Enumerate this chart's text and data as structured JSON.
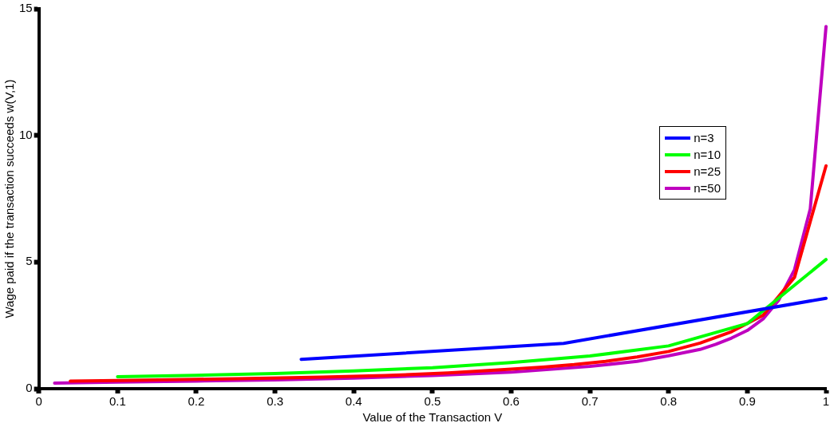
{
  "chart_data": {
    "type": "line",
    "xlabel": "Value of the Transaction V",
    "ylabel": "Wage paid if the transaction succeeds w(V,1)",
    "xlim": [
      0,
      1
    ],
    "xticks": [
      0,
      0.1,
      0.2,
      0.3,
      0.4,
      0.5,
      0.6,
      0.7,
      0.8,
      0.9,
      1
    ],
    "ylim": [
      0,
      15
    ],
    "yticks": [
      0,
      5,
      10,
      15
    ],
    "grid": false,
    "legend": "right",
    "marker": "none",
    "line_style": "solid",
    "series": [
      {
        "name": "n=3",
        "color": "#0000ff",
        "x": [
          0.3333,
          0.6667,
          1
        ],
        "values": [
          1.16,
          1.79,
          3.57
        ]
      },
      {
        "name": "n=10",
        "color": "#00ff00",
        "x": [
          0.1,
          0.2,
          0.3,
          0.4,
          0.5,
          0.6,
          0.7,
          0.8,
          0.9,
          1
        ],
        "values": [
          0.47,
          0.53,
          0.6,
          0.7,
          0.83,
          1.03,
          1.29,
          1.69,
          2.57,
          5.1
        ]
      },
      {
        "name": "n=25",
        "color": "#ff0000",
        "x": [
          0.04,
          0.12,
          0.2,
          0.28,
          0.36,
          0.44,
          0.52,
          0.6,
          0.64,
          0.68,
          0.72,
          0.76,
          0.8,
          0.84,
          0.88,
          0.92,
          0.96,
          1
        ],
        "values": [
          0.3,
          0.33,
          0.37,
          0.41,
          0.46,
          0.52,
          0.62,
          0.77,
          0.85,
          0.95,
          1.08,
          1.25,
          1.47,
          1.8,
          2.25,
          2.9,
          4.4,
          8.8
        ]
      },
      {
        "name": "n=50",
        "color": "#bf00bf",
        "x": [
          0.02,
          0.1,
          0.2,
          0.3,
          0.4,
          0.5,
          0.6,
          0.7,
          0.76,
          0.8,
          0.84,
          0.86,
          0.88,
          0.9,
          0.92,
          0.94,
          0.96,
          0.98,
          1
        ],
        "values": [
          0.22,
          0.26,
          0.3,
          0.35,
          0.42,
          0.52,
          0.65,
          0.88,
          1.08,
          1.3,
          1.55,
          1.75,
          2.0,
          2.3,
          2.75,
          3.5,
          4.7,
          7.1,
          14.3
        ]
      }
    ]
  }
}
